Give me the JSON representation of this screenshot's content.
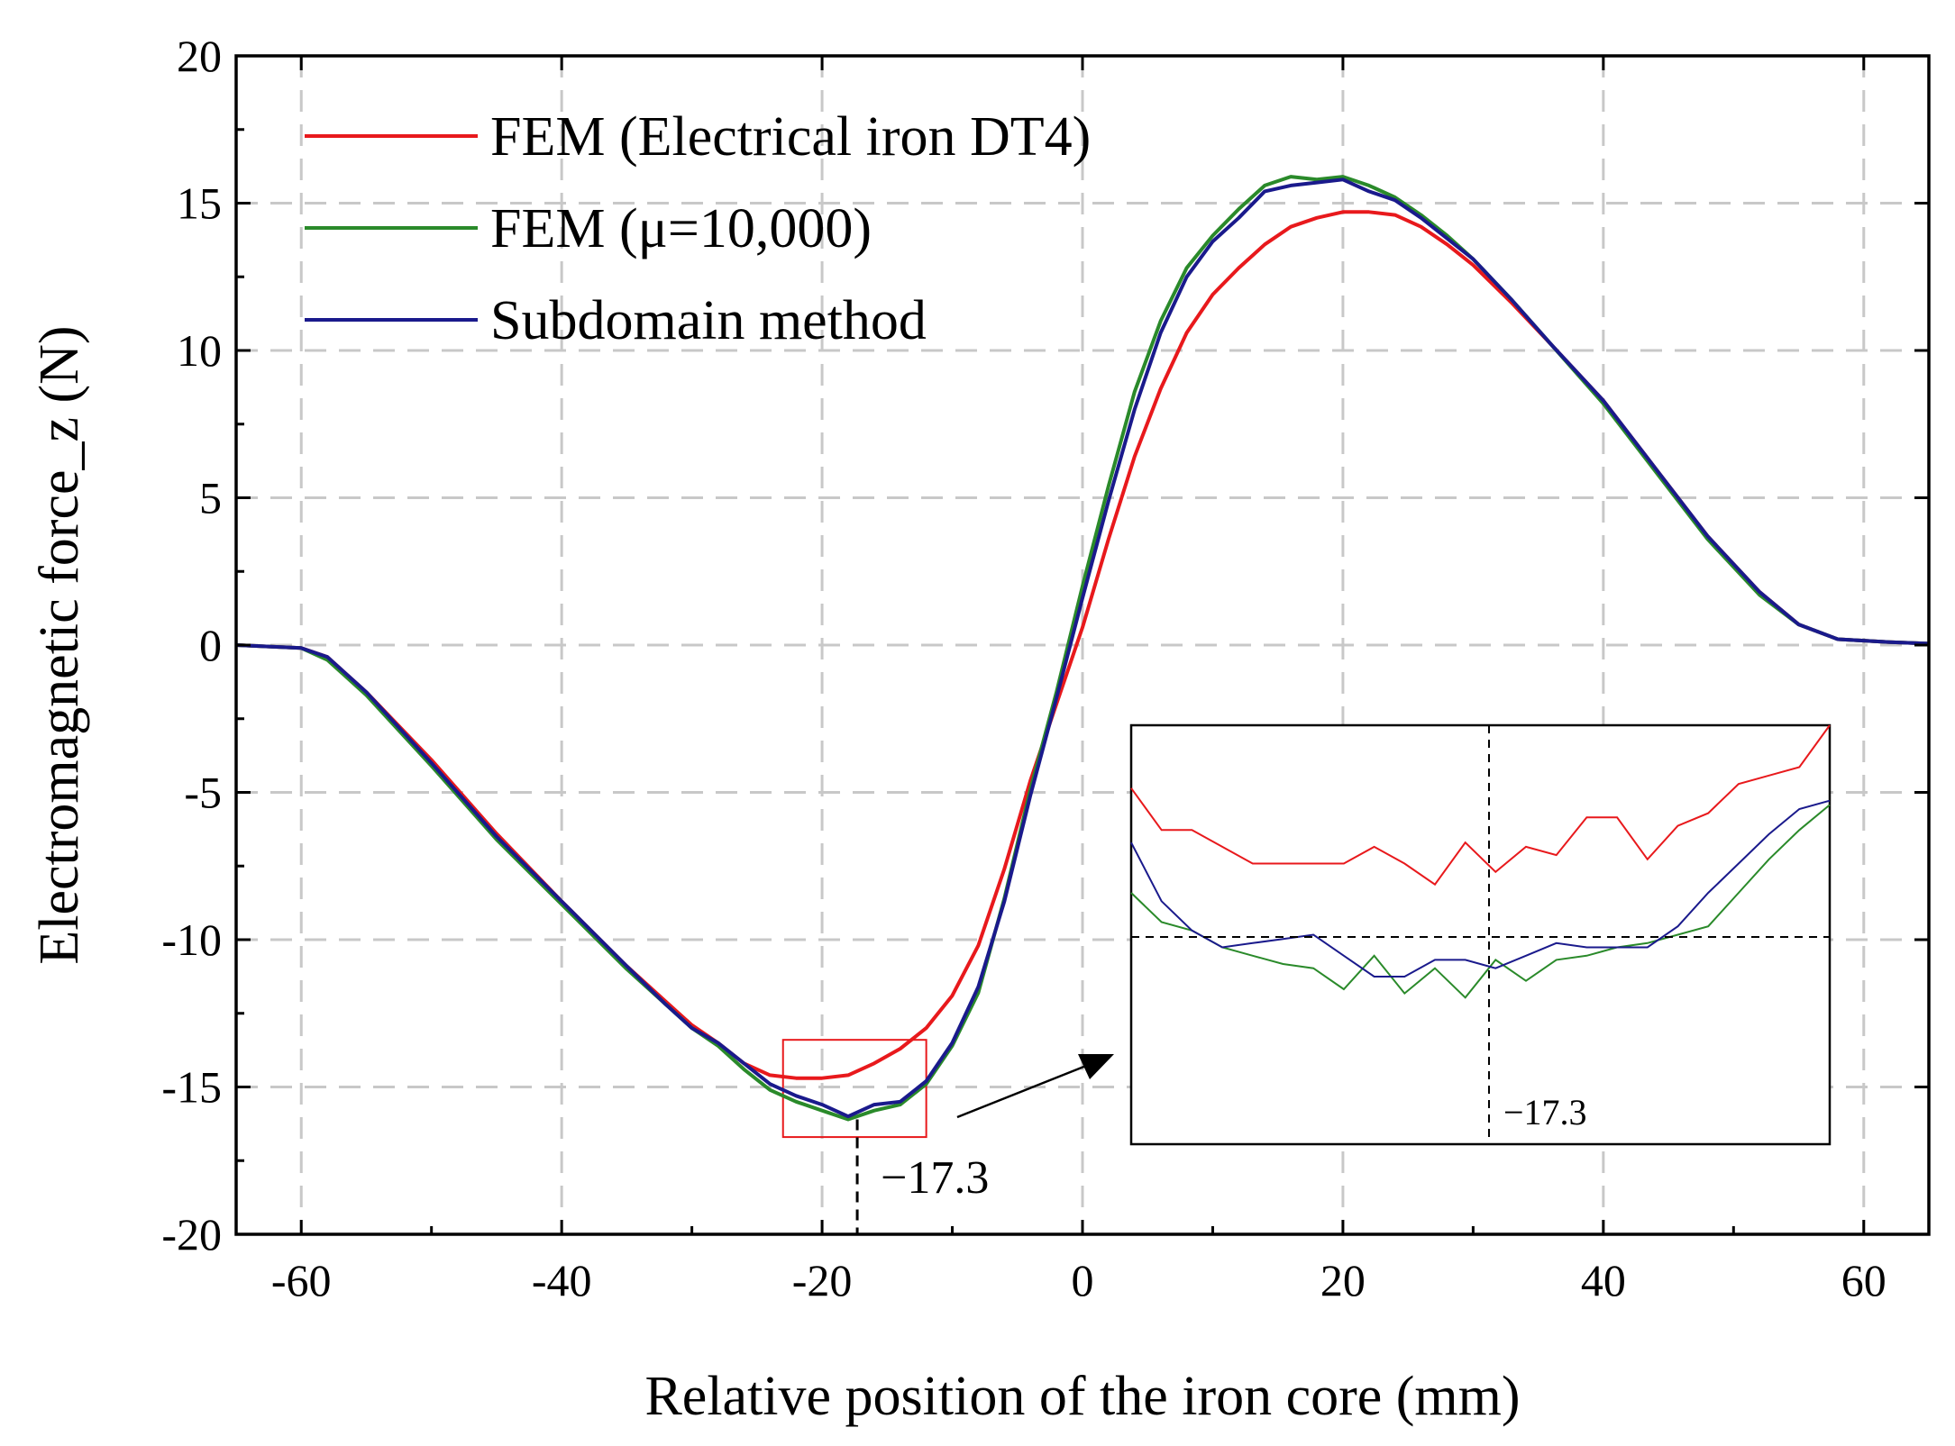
{
  "chart_data": {
    "type": "line",
    "title": "",
    "xlabel": "Relative position of the iron core (mm)",
    "ylabel": "Electromagnetic force_z (N)",
    "xlim": [
      -65,
      65
    ],
    "ylim": [
      -20,
      20
    ],
    "x_ticks": [
      -60,
      -40,
      -20,
      0,
      20,
      40,
      60
    ],
    "y_ticks": [
      20,
      15,
      10,
      5,
      0,
      -5,
      -10,
      -15,
      -20
    ],
    "grid": true,
    "legend_position": "top-left",
    "series": [
      {
        "name": "FEM (Electrical iron DT4)",
        "color": "#e8191c",
        "points": [
          [
            -65,
            0
          ],
          [
            -60,
            -0.1
          ],
          [
            -58,
            -0.4
          ],
          [
            -55,
            -1.6
          ],
          [
            -50,
            -3.9
          ],
          [
            -45,
            -6.4
          ],
          [
            -40,
            -8.7
          ],
          [
            -35,
            -10.9
          ],
          [
            -32,
            -12.1
          ],
          [
            -30,
            -12.9
          ],
          [
            -28,
            -13.5
          ],
          [
            -26,
            -14.2
          ],
          [
            -24,
            -14.6
          ],
          [
            -22,
            -14.7
          ],
          [
            -20,
            -14.7
          ],
          [
            -18,
            -14.6
          ],
          [
            -16,
            -14.2
          ],
          [
            -14,
            -13.7
          ],
          [
            -12,
            -13.0
          ],
          [
            -10,
            -11.9
          ],
          [
            -8,
            -10.2
          ],
          [
            -6,
            -7.6
          ],
          [
            -4,
            -4.6
          ],
          [
            -2,
            -2.0
          ],
          [
            0,
            0.6
          ],
          [
            2,
            3.6
          ],
          [
            4,
            6.4
          ],
          [
            6,
            8.7
          ],
          [
            8,
            10.6
          ],
          [
            10,
            11.9
          ],
          [
            12,
            12.8
          ],
          [
            14,
            13.6
          ],
          [
            16,
            14.2
          ],
          [
            18,
            14.5
          ],
          [
            20,
            14.7
          ],
          [
            22,
            14.7
          ],
          [
            24,
            14.6
          ],
          [
            26,
            14.2
          ],
          [
            28,
            13.6
          ],
          [
            30,
            12.9
          ],
          [
            33,
            11.6
          ],
          [
            36,
            10.2
          ],
          [
            40,
            8.3
          ],
          [
            44,
            6.0
          ],
          [
            48,
            3.7
          ],
          [
            52,
            1.8
          ],
          [
            55,
            0.7
          ],
          [
            58,
            0.2
          ],
          [
            62,
            0.1
          ],
          [
            65,
            0.05
          ]
        ]
      },
      {
        "name": "FEM (μ=10,000)",
        "color": "#2a8a2a",
        "points": [
          [
            -65,
            0
          ],
          [
            -60,
            -0.1
          ],
          [
            -58,
            -0.5
          ],
          [
            -55,
            -1.7
          ],
          [
            -50,
            -4.1
          ],
          [
            -45,
            -6.6
          ],
          [
            -40,
            -8.8
          ],
          [
            -35,
            -11.0
          ],
          [
            -32,
            -12.2
          ],
          [
            -30,
            -13.0
          ],
          [
            -28,
            -13.6
          ],
          [
            -26,
            -14.4
          ],
          [
            -24,
            -15.1
          ],
          [
            -22,
            -15.5
          ],
          [
            -20,
            -15.8
          ],
          [
            -18,
            -16.1
          ],
          [
            -16,
            -15.8
          ],
          [
            -14,
            -15.6
          ],
          [
            -12,
            -14.9
          ],
          [
            -10,
            -13.6
          ],
          [
            -8,
            -11.8
          ],
          [
            -6,
            -8.6
          ],
          [
            -4,
            -4.9
          ],
          [
            -2,
            -1.6
          ],
          [
            0,
            2.0
          ],
          [
            2,
            5.4
          ],
          [
            4,
            8.6
          ],
          [
            6,
            11.0
          ],
          [
            8,
            12.8
          ],
          [
            10,
            13.9
          ],
          [
            12,
            14.8
          ],
          [
            14,
            15.6
          ],
          [
            16,
            15.9
          ],
          [
            18,
            15.8
          ],
          [
            20,
            15.9
          ],
          [
            22,
            15.6
          ],
          [
            24,
            15.2
          ],
          [
            26,
            14.6
          ],
          [
            28,
            13.9
          ],
          [
            30,
            13.1
          ],
          [
            33,
            11.7
          ],
          [
            36,
            10.2
          ],
          [
            40,
            8.2
          ],
          [
            44,
            5.9
          ],
          [
            48,
            3.6
          ],
          [
            52,
            1.7
          ],
          [
            55,
            0.7
          ],
          [
            58,
            0.2
          ],
          [
            62,
            0.1
          ],
          [
            65,
            0.05
          ]
        ]
      },
      {
        "name": "Subdomain method",
        "color": "#1a1a8c",
        "points": [
          [
            -65,
            0
          ],
          [
            -60,
            -0.1
          ],
          [
            -58,
            -0.4
          ],
          [
            -55,
            -1.6
          ],
          [
            -50,
            -4.0
          ],
          [
            -45,
            -6.5
          ],
          [
            -40,
            -8.7
          ],
          [
            -35,
            -10.9
          ],
          [
            -32,
            -12.2
          ],
          [
            -30,
            -13.0
          ],
          [
            -28,
            -13.5
          ],
          [
            -26,
            -14.2
          ],
          [
            -24,
            -14.9
          ],
          [
            -22,
            -15.3
          ],
          [
            -20,
            -15.6
          ],
          [
            -18,
            -16.0
          ],
          [
            -16,
            -15.6
          ],
          [
            -14,
            -15.5
          ],
          [
            -12,
            -14.8
          ],
          [
            -10,
            -13.5
          ],
          [
            -8,
            -11.6
          ],
          [
            -6,
            -8.7
          ],
          [
            -4,
            -5.1
          ],
          [
            -2,
            -1.8
          ],
          [
            0,
            1.6
          ],
          [
            2,
            4.9
          ],
          [
            4,
            8.0
          ],
          [
            6,
            10.6
          ],
          [
            8,
            12.5
          ],
          [
            10,
            13.7
          ],
          [
            12,
            14.5
          ],
          [
            14,
            15.4
          ],
          [
            16,
            15.6
          ],
          [
            18,
            15.7
          ],
          [
            20,
            15.8
          ],
          [
            22,
            15.4
          ],
          [
            24,
            15.1
          ],
          [
            26,
            14.5
          ],
          [
            28,
            13.8
          ],
          [
            30,
            13.1
          ],
          [
            33,
            11.7
          ],
          [
            36,
            10.2
          ],
          [
            40,
            8.3
          ],
          [
            44,
            6.0
          ],
          [
            48,
            3.7
          ],
          [
            52,
            1.8
          ],
          [
            55,
            0.7
          ],
          [
            58,
            0.2
          ],
          [
            62,
            0.1
          ],
          [
            65,
            0.05
          ]
        ]
      }
    ],
    "annotations": [
      {
        "text": "−17.3",
        "x": -17.3,
        "note": "minimum location marker (dashed vertical line)"
      }
    ],
    "inset": {
      "description": "zoomed view of the minimum region",
      "source_region_x": [
        -23,
        -12
      ],
      "source_region_y": [
        -16.7,
        -13.4
      ],
      "annotation_text": "−17.3",
      "series": [
        {
          "name": "FEM (Electrical iron DT4)",
          "color": "#e8191c",
          "points": [
            [
              0,
              0.15
            ],
            [
              0.5,
              0.25
            ],
            [
              1,
              0.25
            ],
            [
              1.5,
              0.29
            ],
            [
              2,
              0.33
            ],
            [
              2.5,
              0.33
            ],
            [
              3,
              0.33
            ],
            [
              3.5,
              0.33
            ],
            [
              4,
              0.29
            ],
            [
              4.5,
              0.33
            ],
            [
              5,
              0.38
            ],
            [
              5.5,
              0.28
            ],
            [
              6,
              0.35
            ],
            [
              6.5,
              0.29
            ],
            [
              7,
              0.31
            ],
            [
              7.5,
              0.22
            ],
            [
              8,
              0.22
            ],
            [
              8.5,
              0.32
            ],
            [
              9,
              0.24
            ],
            [
              9.5,
              0.21
            ],
            [
              10,
              0.14
            ],
            [
              10.5,
              0.12
            ],
            [
              11,
              0.1
            ],
            [
              11.5,
              0.0
            ]
          ]
        },
        {
          "name": "FEM (μ=10,000)",
          "color": "#2a8a2a",
          "points": [
            [
              0,
              0.4
            ],
            [
              0.5,
              0.47
            ],
            [
              1,
              0.49
            ],
            [
              1.5,
              0.53
            ],
            [
              2,
              0.55
            ],
            [
              2.5,
              0.57
            ],
            [
              3,
              0.58
            ],
            [
              3.5,
              0.63
            ],
            [
              4,
              0.55
            ],
            [
              4.5,
              0.64
            ],
            [
              5,
              0.58
            ],
            [
              5.5,
              0.65
            ],
            [
              6,
              0.56
            ],
            [
              6.5,
              0.61
            ],
            [
              7,
              0.56
            ],
            [
              7.5,
              0.55
            ],
            [
              8,
              0.53
            ],
            [
              8.5,
              0.52
            ],
            [
              9,
              0.5
            ],
            [
              9.5,
              0.48
            ],
            [
              10,
              0.4
            ],
            [
              10.5,
              0.32
            ],
            [
              11,
              0.25
            ],
            [
              11.5,
              0.19
            ]
          ]
        },
        {
          "name": "Subdomain method",
          "color": "#1a1a8c",
          "points": [
            [
              0,
              0.28
            ],
            [
              0.5,
              0.42
            ],
            [
              1,
              0.49
            ],
            [
              1.5,
              0.53
            ],
            [
              2,
              0.52
            ],
            [
              2.5,
              0.51
            ],
            [
              3,
              0.5
            ],
            [
              3.5,
              0.55
            ],
            [
              4,
              0.6
            ],
            [
              4.5,
              0.6
            ],
            [
              5,
              0.56
            ],
            [
              5.5,
              0.56
            ],
            [
              6,
              0.58
            ],
            [
              6.5,
              0.55
            ],
            [
              7,
              0.52
            ],
            [
              7.5,
              0.53
            ],
            [
              8,
              0.53
            ],
            [
              8.5,
              0.53
            ],
            [
              9,
              0.48
            ],
            [
              9.5,
              0.4
            ],
            [
              10,
              0.33
            ],
            [
              10.5,
              0.26
            ],
            [
              11,
              0.2
            ],
            [
              11.5,
              0.18
            ]
          ]
        }
      ]
    }
  }
}
